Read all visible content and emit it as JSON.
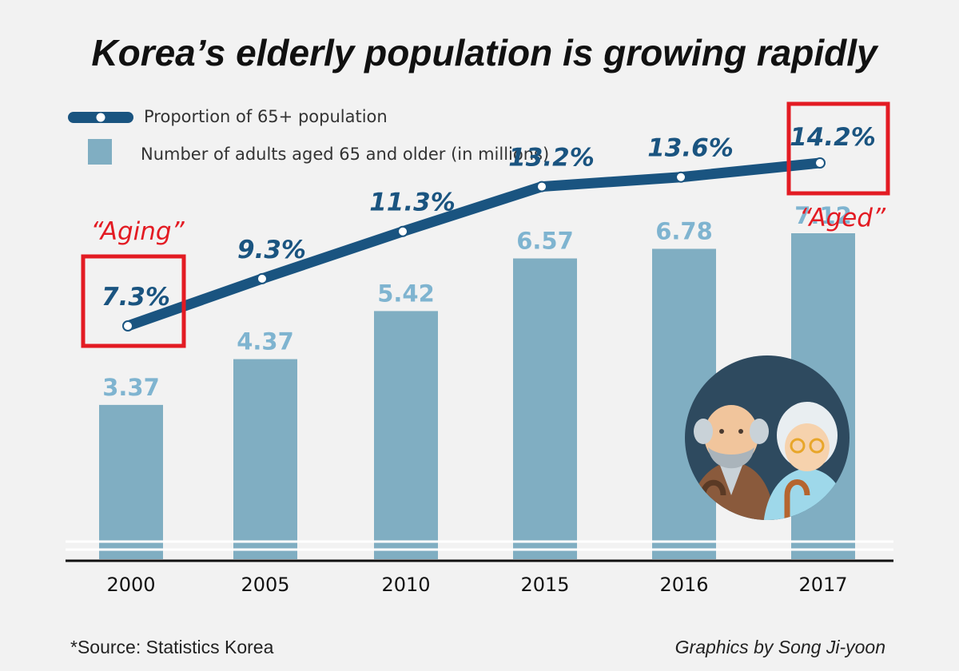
{
  "title": "Korea’s elderly population is growing rapidly",
  "legend": {
    "line_label": "Proportion of 65+ population",
    "bar_label": "Number of adults aged 65 and older (in millions)"
  },
  "stages": [
    {
      "year": "2000",
      "label": "“Aging”"
    },
    {
      "year": "2017",
      "label": "“Aged”"
    }
  ],
  "chart_data": {
    "type": "bar",
    "title": "Korea’s elderly population is growing rapidly",
    "categories": [
      "2000",
      "2005",
      "2010",
      "2015",
      "2016",
      "2017"
    ],
    "series": [
      {
        "name": "Number of adults aged 65 and older (in millions)",
        "type": "bar",
        "values": [
          3.37,
          4.37,
          5.42,
          6.57,
          6.78,
          7.12
        ],
        "labels": [
          "3.37",
          "4.37",
          "5.42",
          "6.57",
          "6.78",
          "7.12"
        ]
      },
      {
        "name": "Proportion of 65+ population",
        "type": "line",
        "values": [
          7.3,
          9.3,
          11.3,
          13.2,
          13.6,
          14.2
        ],
        "labels": [
          "7.3%",
          "9.3%",
          "11.3%",
          "13.2%",
          "13.6%",
          "14.2%"
        ]
      }
    ],
    "grid": false,
    "legend_position": "top-left"
  },
  "footer": {
    "source": "*Source: Statistics Korea",
    "credit": "Graphics by Song Ji-yoon"
  },
  "colors": {
    "bar": "#80aec2",
    "bar_label": "#7fb4d0",
    "line": "#1a5480",
    "highlight": "#e31b23",
    "axis": "#111111"
  },
  "icons": [
    "elderly-couple-icon"
  ]
}
